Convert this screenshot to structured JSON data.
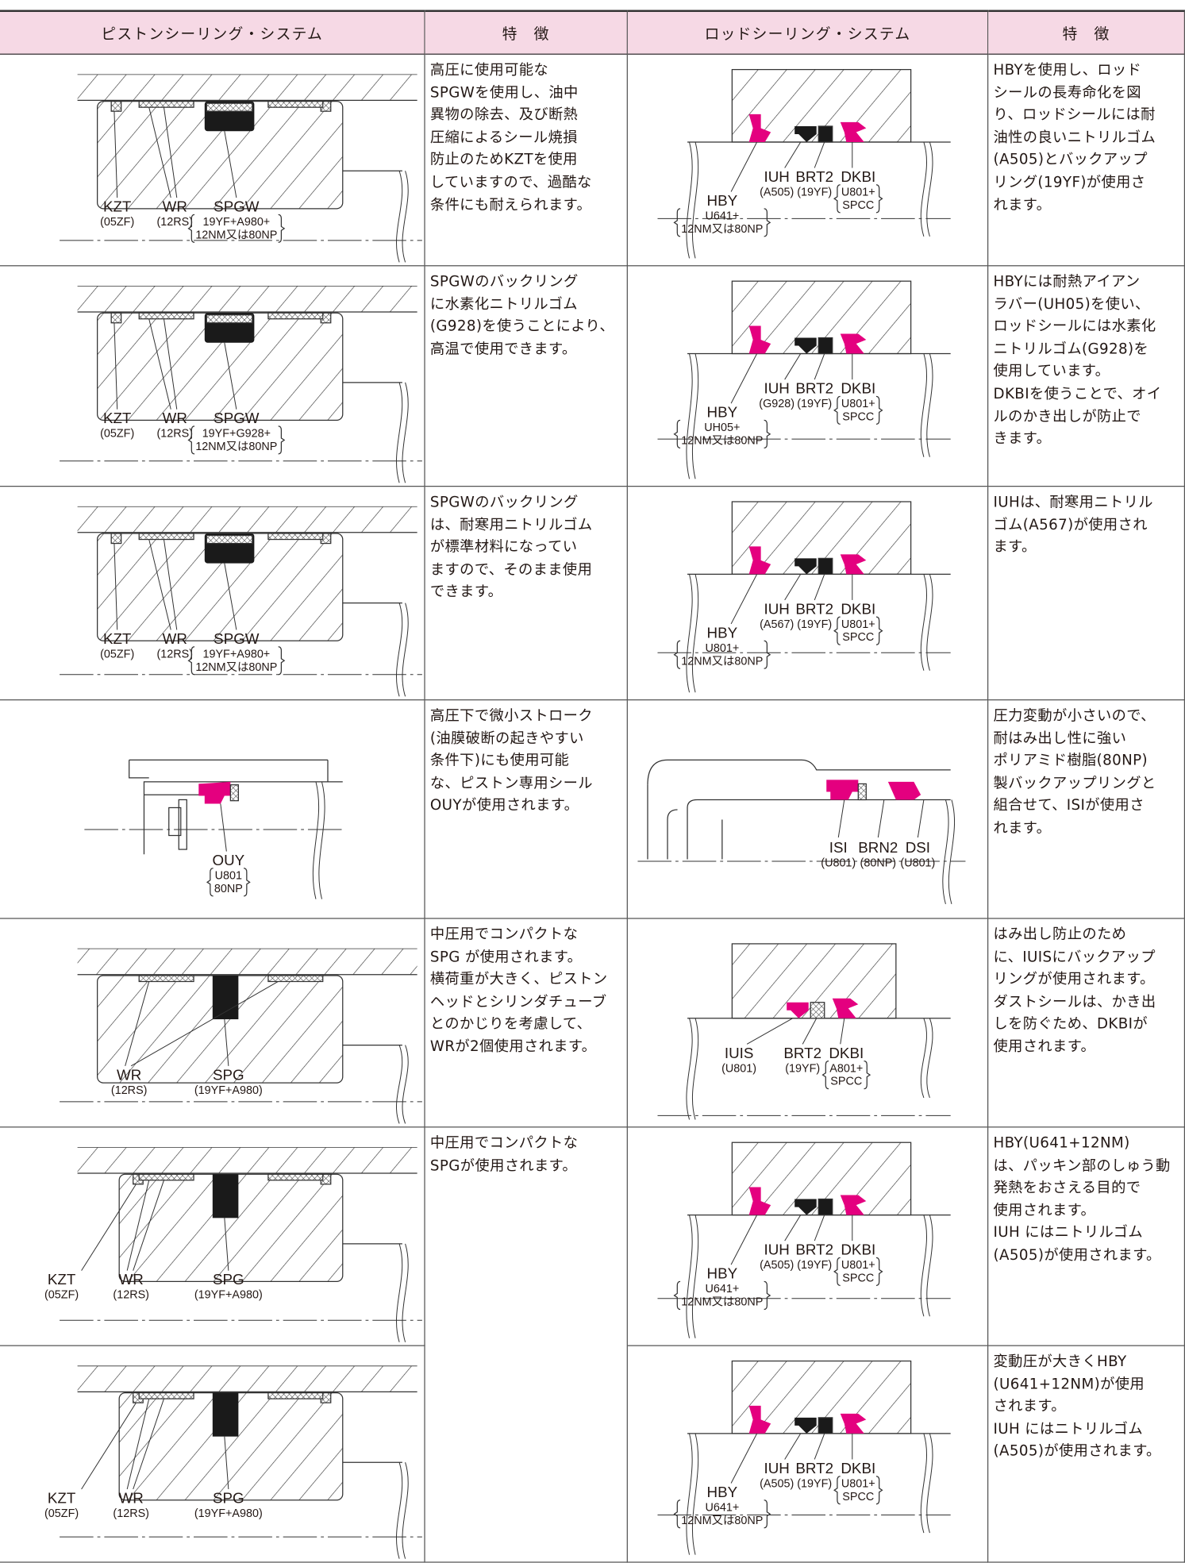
{
  "header": [
    "ピストンシーリング・システム",
    "特　徴",
    "ロッドシーリング・システム",
    "特　徴"
  ],
  "rows": [
    {
      "piston_drawing": {
        "labels": [
          {
            "name": "KZT",
            "material": [
              "(05ZF)"
            ]
          },
          {
            "name": "WR",
            "material": [
              "(12RS)"
            ]
          },
          {
            "name": "SPGW",
            "material": [
              "19YF+A980+",
              "12NM又は80NP"
            ]
          }
        ]
      },
      "piston_feature": [
        "高圧に使用可能な",
        "SPGWを使用し、油中",
        "異物の除去、及び断熱",
        "圧縮によるシール焼損",
        "防止のためKZTを使用",
        "していますので、過酷な",
        "条件にも耐えられます。"
      ],
      "rod_drawing": {
        "labels": [
          {
            "name": "IUH",
            "material": [
              "(A505)"
            ]
          },
          {
            "name": "BRT2",
            "material": [
              "(19YF)"
            ]
          },
          {
            "name": "DKBI",
            "material": [
              "U801+",
              "SPCC"
            ]
          },
          {
            "name": "HBY",
            "material": [
              "U641+",
              "12NM又は80NP"
            ]
          }
        ]
      },
      "rod_feature": [
        "HBYを使用し、ロッド",
        "シールの長寿命化を図",
        "り、ロッドシールには耐",
        "油性の良いニトリルゴム",
        "(A505)とバックアップ",
        "リング(19YF)が使用さ",
        "れます。"
      ]
    },
    {
      "piston_drawing": {
        "labels": [
          {
            "name": "KZT",
            "material": [
              "(05ZF)"
            ]
          },
          {
            "name": "WR",
            "material": [
              "(12RS)"
            ]
          },
          {
            "name": "SPGW",
            "material": [
              "19YF+G928+",
              "12NM又は80NP"
            ]
          }
        ]
      },
      "piston_feature": [
        "SPGWのバックリング",
        "に水素化ニトリルゴム",
        "(G928)を使うことにより、",
        "高温で使用できます。"
      ],
      "rod_drawing": {
        "labels": [
          {
            "name": "IUH",
            "material": [
              "(G928)"
            ]
          },
          {
            "name": "BRT2",
            "material": [
              "(19YF)"
            ]
          },
          {
            "name": "DKBI",
            "material": [
              "U801+",
              "SPCC"
            ]
          },
          {
            "name": "HBY",
            "material": [
              "UH05+",
              "12NM又は80NP"
            ]
          }
        ]
      },
      "rod_feature": [
        "HBYには耐熱アイアン",
        "ラバー(UH05)を使い、",
        "ロッドシールには水素化",
        "ニトリルゴム(G928)を",
        "使用しています。",
        "DKBIを使うことで、オイ",
        "ルのかき出しが防止で",
        "きます。"
      ]
    },
    {
      "piston_drawing": {
        "labels": [
          {
            "name": "KZT",
            "material": [
              "(05ZF)"
            ]
          },
          {
            "name": "WR",
            "material": [
              "(12RS)"
            ]
          },
          {
            "name": "SPGW",
            "material": [
              "19YF+A980+",
              "12NM又は80NP"
            ]
          }
        ]
      },
      "piston_feature": [
        "SPGWのバックリング",
        "は、耐寒用ニトリルゴム",
        "が標準材料になってい",
        "ますので、そのまま使用",
        "できます。"
      ],
      "rod_drawing": {
        "labels": [
          {
            "name": "IUH",
            "material": [
              "(A567)"
            ]
          },
          {
            "name": "BRT2",
            "material": [
              "(19YF)"
            ]
          },
          {
            "name": "DKBI",
            "material": [
              "U801+",
              "SPCC"
            ]
          },
          {
            "name": "HBY",
            "material": [
              "U801+",
              "12NM又は80NP"
            ]
          }
        ]
      },
      "rod_feature": [
        "IUHは、耐寒用ニトリル",
        "ゴム(A567)が使用され",
        "ます。"
      ]
    },
    {
      "piston_drawing": {
        "labels": [
          {
            "name": "OUY",
            "material": [
              "U801",
              "80NP"
            ]
          }
        ]
      },
      "piston_feature": [
        "高圧下で微小ストローク",
        "(油膜破断の起きやすい",
        "条件下)にも使用可能",
        "な、ピストン専用シール",
        "OUYが使用されます。"
      ],
      "rod_drawing": {
        "labels": [
          {
            "name": "ISI",
            "material": [
              "(U801)"
            ]
          },
          {
            "name": "BRN2",
            "material": [
              "(80NP)"
            ]
          },
          {
            "name": "DSI",
            "material": [
              "(U801)"
            ]
          }
        ]
      },
      "rod_feature": [
        "圧力変動が小さいので、",
        "耐はみ出し性に強い",
        "ポリアミド樹脂(80NP)",
        "製バックアップリングと",
        "組合せて、ISIが使用さ",
        "れます。"
      ]
    },
    {
      "piston_drawing": {
        "labels": [
          {
            "name": "WR",
            "material": [
              "(12RS)"
            ]
          },
          {
            "name": "SPG",
            "material": [
              "(19YF+A980)"
            ]
          }
        ]
      },
      "piston_feature": [
        "中圧用でコンパクトな",
        "SPG が使用されます。",
        "横荷重が大きく、ピストン",
        "ヘッドとシリンダチューブ",
        "とのかじりを考慮して、",
        "WRが2個使用されます。"
      ],
      "rod_drawing": {
        "labels": [
          {
            "name": "IUIS",
            "material": [
              "(U801)"
            ]
          },
          {
            "name": "BRT2",
            "material": [
              "(19YF)"
            ]
          },
          {
            "name": "DKBI",
            "material": [
              "A801+",
              "SPCC"
            ]
          }
        ]
      },
      "rod_feature": [
        "はみ出し防止のため",
        "に、IUISにバックアップ",
        "リングが使用されます。",
        "ダストシールは、かき出",
        "しを防ぐため、DKBIが",
        "使用されます。"
      ]
    },
    {
      "piston_drawing": {
        "labels": [
          {
            "name": "KZT",
            "material": [
              "(05ZF)"
            ]
          },
          {
            "name": "WR",
            "material": [
              "(12RS)"
            ]
          },
          {
            "name": "SPG",
            "material": [
              "(19YF+A980)"
            ]
          }
        ]
      },
      "piston_feature": [
        "中圧用でコンパクトな",
        "SPGが使用されます。"
      ],
      "rod_drawing": {
        "labels": [
          {
            "name": "IUH",
            "material": [
              "(A505)"
            ]
          },
          {
            "name": "BRT2",
            "material": [
              "(19YF)"
            ]
          },
          {
            "name": "DKBI",
            "material": [
              "U801+",
              "SPCC"
            ]
          },
          {
            "name": "HBY",
            "material": [
              "U641+",
              "12NM又は80NP"
            ]
          }
        ]
      },
      "rod_feature": [
        "HBY(U641+12NM)",
        "は、パッキン部のしゅう動",
        "発熱をおさえる目的で",
        "使用されます。",
        "IUH にはニトリルゴム",
        "(A505)が使用されます。"
      ]
    },
    {
      "piston_drawing": {
        "labels": [
          {
            "name": "KZT",
            "material": [
              "(05ZF)"
            ]
          },
          {
            "name": "WR",
            "material": [
              "(12RS)"
            ]
          },
          {
            "name": "SPG",
            "material": [
              "(19YF+A980)"
            ]
          }
        ]
      },
      "rod_drawing": {
        "labels": [
          {
            "name": "IUH",
            "material": [
              "(A505)"
            ]
          },
          {
            "name": "BRT2",
            "material": [
              "(19YF)"
            ]
          },
          {
            "name": "DKBI",
            "material": [
              "U801+",
              "SPCC"
            ]
          },
          {
            "name": "HBY",
            "material": [
              "U641+",
              "12NM又は80NP"
            ]
          }
        ]
      },
      "rod_feature": [
        "変動圧が大きくHBY",
        "(U641+12NM)が使用",
        "されます。",
        "IUH にはニトリルゴム",
        "(A505)が使用されます。"
      ]
    }
  ]
}
